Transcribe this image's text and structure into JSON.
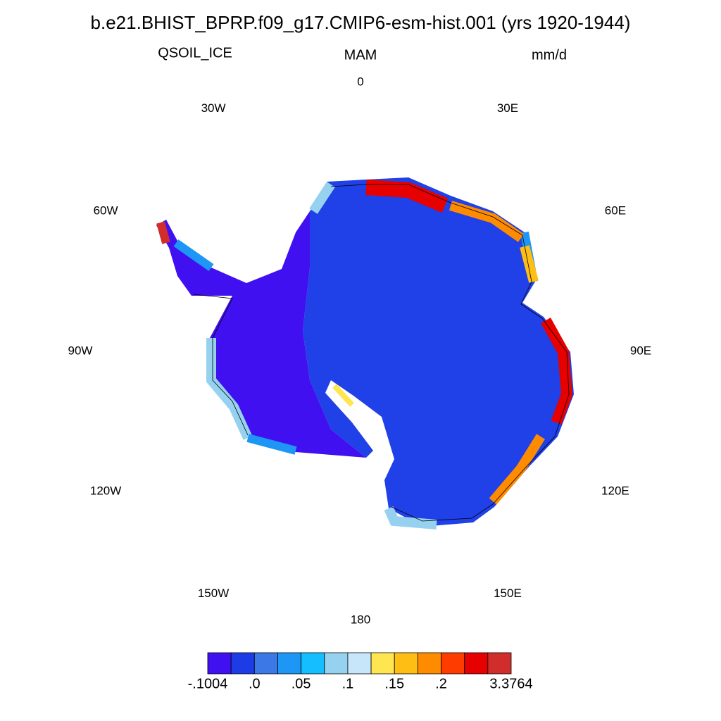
{
  "header": {
    "title": "b.e21.BHIST_BPRP.f09_g17.CMIP6-esm-hist.001 (yrs 1920-1944)",
    "left": "QSOIL_ICE",
    "center": "MAM",
    "right": "mm/d"
  },
  "map": {
    "longitude_labels": [
      "0",
      "30E",
      "60E",
      "90E",
      "120E",
      "150E",
      "180",
      "150W",
      "120W",
      "90W",
      "60W",
      "30W"
    ]
  },
  "colorbar": {
    "colors": [
      "#4010f0",
      "#1e3ce6",
      "#3c78e6",
      "#1e96f5",
      "#14beff",
      "#96d2f0",
      "#c8e6fa",
      "#ffe650",
      "#ffbe14",
      "#ff8c00",
      "#ff3c00",
      "#e60000",
      "#d22d2d"
    ],
    "ticks": [
      {
        "value": -0.1004,
        "label": "-.1004"
      },
      {
        "value": 0,
        "label": ".0"
      },
      {
        "value": 0.05,
        "label": ".05"
      },
      {
        "value": 0.1,
        "label": ".1"
      },
      {
        "value": 0.15,
        "label": ".15"
      },
      {
        "value": 0.2,
        "label": ".2"
      },
      {
        "value": 3.3764,
        "label": "3.3764"
      }
    ]
  }
}
